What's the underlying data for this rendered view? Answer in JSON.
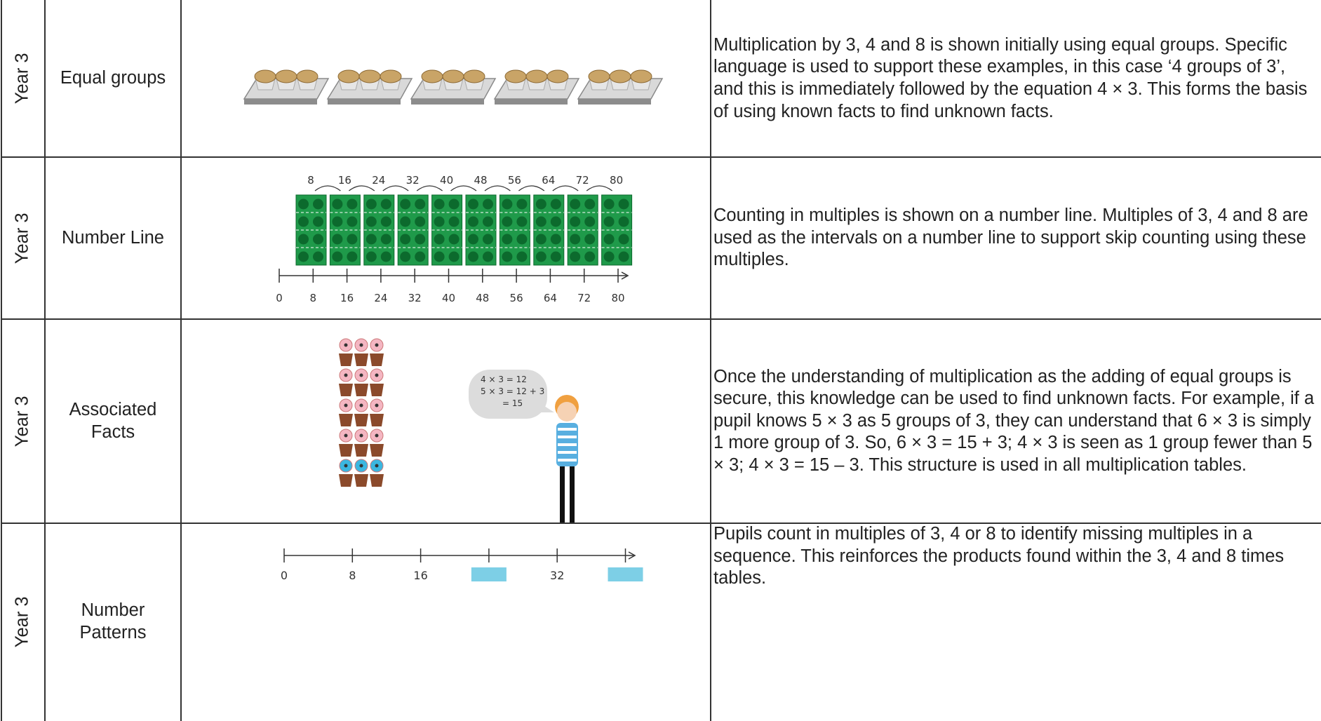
{
  "table": {
    "rows": [
      {
        "year": "Year 3",
        "topic": "Equal groups",
        "description": "Multiplication by 3, 4 and 8 is shown initially using equal groups. Specific language is used to support these examples, in this case ‘4 groups of 3’, and this is immediately followed by the equation 4 × 3. This forms the basis of using known facts to find unknown facts."
      },
      {
        "year": "Year 3",
        "topic": "Number Line",
        "description": "Counting in multiples is shown on a number line. Multiples of 3, 4 and 8 are used as the intervals on a number line to support skip counting using these multiples."
      },
      {
        "year": "Year 3",
        "topic": "Associated Facts",
        "description": "Once the understanding of multiplication as the adding of equal groups is secure, this knowledge can be used to find unknown facts. For example, if a pupil knows 5 × 3 as 5 groups of 3, they can understand that 6 × 3 is simply 1 more group of 3. So, 6 × 3 = 15 + 3; 4 × 3 is seen as 1 group fewer than 5 × 3; 4 × 3 = 15 – 3. This structure is used in all multiplication tables."
      },
      {
        "year": "Year 3",
        "topic": "Number Patterns",
        "description": "Pupils count in multiples of 3, 4 or 8 to identify missing multiples in a sequence. This reinforces the products found within the 3, 4 and 8 times tables."
      }
    ]
  },
  "illustrations": {
    "number_line": {
      "jump_labels": [
        "8",
        "16",
        "24",
        "32",
        "40",
        "48",
        "56",
        "64",
        "72",
        "80"
      ],
      "axis_labels": [
        "0",
        "8",
        "16",
        "24",
        "32",
        "40",
        "48",
        "56",
        "64",
        "72",
        "80"
      ]
    },
    "associated_facts": {
      "speech": [
        "4 × 3 = 12",
        "5 × 3 = 12 + 3",
        "= 15"
      ]
    },
    "number_patterns": {
      "axis_labels": [
        "0",
        "8",
        "16",
        null,
        "32",
        null
      ]
    }
  }
}
